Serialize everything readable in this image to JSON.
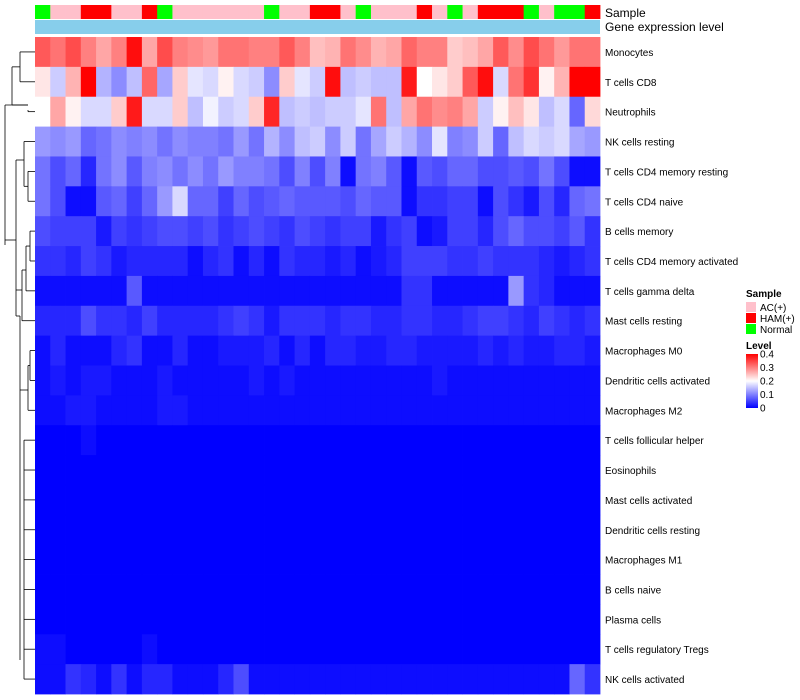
{
  "chart_data": {
    "type": "heatmap",
    "title": "",
    "annotation_tracks": [
      {
        "name": "Sample",
        "label": "Sample"
      },
      {
        "name": "Gene expression level",
        "label": "Gene expression level",
        "color": "#87CEEB"
      }
    ],
    "sample_groups": [
      "Normal",
      "AC(+)",
      "AC(+)",
      "HAM(+)",
      "HAM(+)",
      "AC(+)",
      "AC(+)",
      "HAM(+)",
      "Normal",
      "AC(+)",
      "AC(+)",
      "AC(+)",
      "AC(+)",
      "AC(+)",
      "AC(+)",
      "Normal",
      "AC(+)",
      "AC(+)",
      "HAM(+)",
      "HAM(+)",
      "AC(+)",
      "Normal",
      "AC(+)",
      "AC(+)",
      "AC(+)",
      "HAM(+)",
      "AC(+)",
      "Normal",
      "AC(+)",
      "HAM(+)",
      "HAM(+)",
      "HAM(+)",
      "Normal",
      "AC(+)",
      "Normal",
      "Normal",
      "HAM(+)"
    ],
    "rows": [
      "Monocytes",
      "T cells CD8",
      "Neutrophils",
      "NK cells resting",
      "T cells CD4 memory resting",
      "T cells CD4 naive",
      "B cells memory",
      "T cells CD4 memory activated",
      "T cells gamma delta",
      "Mast cells resting",
      "Macrophages M0",
      "Dendritic cells activated",
      "Macrophages M2",
      "T cells follicular helper",
      "Eosinophils",
      "Mast cells activated",
      "Dendritic cells resting",
      "Macrophages M1",
      "B cells naive",
      "Plasma cells",
      "T cells regulatory  Tregs",
      "NK cells activated"
    ],
    "values": [
      [
        0.33,
        0.31,
        0.34,
        0.3,
        0.27,
        0.3,
        0.39,
        0.27,
        0.34,
        0.3,
        0.29,
        0.28,
        0.31,
        0.31,
        0.3,
        0.3,
        0.33,
        0.3,
        0.25,
        0.26,
        0.31,
        0.29,
        0.26,
        0.27,
        0.32,
        0.3,
        0.3,
        0.24,
        0.25,
        0.27,
        0.33,
        0.29,
        0.34,
        0.31,
        0.28,
        0.31,
        0.31
      ],
      [
        0.22,
        0.16,
        0.26,
        0.4,
        0.14,
        0.11,
        0.15,
        0.32,
        0.13,
        0.24,
        0.18,
        0.17,
        0.21,
        0.17,
        0.16,
        0.11,
        0.24,
        0.18,
        0.16,
        0.39,
        0.15,
        0.16,
        0.15,
        0.15,
        0.38,
        0.2,
        0.22,
        0.24,
        0.33,
        0.39,
        0.17,
        0.31,
        0.36,
        0.21,
        0.26,
        0.4,
        0.4
      ],
      [
        0.2,
        0.27,
        0.21,
        0.17,
        0.17,
        0.24,
        0.38,
        0.17,
        0.17,
        0.24,
        0.15,
        0.19,
        0.16,
        0.17,
        0.24,
        0.37,
        0.15,
        0.16,
        0.15,
        0.16,
        0.16,
        0.18,
        0.31,
        0.15,
        0.27,
        0.31,
        0.29,
        0.3,
        0.27,
        0.16,
        0.21,
        0.25,
        0.22,
        0.15,
        0.17,
        0.08,
        0.23
      ],
      [
        0.12,
        0.11,
        0.12,
        0.08,
        0.09,
        0.11,
        0.1,
        0.11,
        0.09,
        0.11,
        0.1,
        0.1,
        0.09,
        0.12,
        0.09,
        0.14,
        0.11,
        0.15,
        0.16,
        0.11,
        0.16,
        0.09,
        0.13,
        0.16,
        0.14,
        0.11,
        0.18,
        0.1,
        0.11,
        0.16,
        0.08,
        0.15,
        0.17,
        0.16,
        0.17,
        0.13,
        0.12
      ],
      [
        0.09,
        0.06,
        0.08,
        0.03,
        0.09,
        0.11,
        0.07,
        0.1,
        0.11,
        0.09,
        0.11,
        0.09,
        0.12,
        0.1,
        0.1,
        0.09,
        0.06,
        0.1,
        0.06,
        0.1,
        0.01,
        0.09,
        0.1,
        0.07,
        0.01,
        0.07,
        0.06,
        0.08,
        0.08,
        0.06,
        0.06,
        0.07,
        0.06,
        0.09,
        0.06,
        0.01,
        0.01
      ],
      [
        0.09,
        0.06,
        0.01,
        0.01,
        0.07,
        0.08,
        0.05,
        0.08,
        0.12,
        0.17,
        0.08,
        0.08,
        0.05,
        0.08,
        0.06,
        0.07,
        0.08,
        0.07,
        0.07,
        0.07,
        0.06,
        0.08,
        0.07,
        0.07,
        0.01,
        0.04,
        0.04,
        0.05,
        0.05,
        0.01,
        0.06,
        0.04,
        0.02,
        0.06,
        0.03,
        0.08,
        0.09
      ],
      [
        0.06,
        0.05,
        0.05,
        0.05,
        0.02,
        0.05,
        0.04,
        0.05,
        0.06,
        0.06,
        0.05,
        0.06,
        0.04,
        0.05,
        0.06,
        0.05,
        0.04,
        0.06,
        0.05,
        0.04,
        0.05,
        0.05,
        0.02,
        0.04,
        0.05,
        0.01,
        0.02,
        0.05,
        0.05,
        0.03,
        0.06,
        0.08,
        0.06,
        0.06,
        0.05,
        0.07,
        0.04
      ],
      [
        0.04,
        0.04,
        0.03,
        0.05,
        0.04,
        0.02,
        0.03,
        0.03,
        0.03,
        0.03,
        0.01,
        0.03,
        0.04,
        0.01,
        0.03,
        0.01,
        0.04,
        0.03,
        0.03,
        0.02,
        0.03,
        0.01,
        0.02,
        0.03,
        0.05,
        0.05,
        0.05,
        0.04,
        0.04,
        0.05,
        0.04,
        0.04,
        0.04,
        0.03,
        0.02,
        0.03,
        0.04
      ],
      [
        0.01,
        0.01,
        0.01,
        0.01,
        0.01,
        0.01,
        0.07,
        0.01,
        0.01,
        0.01,
        0.01,
        0.01,
        0.01,
        0.01,
        0.01,
        0.01,
        0.01,
        0.01,
        0.01,
        0.01,
        0.01,
        0.01,
        0.01,
        0.01,
        0.04,
        0.04,
        0.01,
        0.01,
        0.01,
        0.01,
        0.01,
        0.12,
        0.04,
        0.03,
        0.01,
        0.01,
        0.01
      ],
      [
        0.03,
        0.03,
        0.03,
        0.06,
        0.04,
        0.04,
        0.03,
        0.05,
        0.03,
        0.03,
        0.03,
        0.03,
        0.04,
        0.05,
        0.04,
        0.02,
        0.04,
        0.04,
        0.04,
        0.03,
        0.04,
        0.04,
        0.03,
        0.03,
        0.04,
        0.04,
        0.03,
        0.03,
        0.04,
        0.05,
        0.05,
        0.04,
        0.03,
        0.05,
        0.04,
        0.03,
        0.04
      ],
      [
        0.01,
        0.03,
        0.01,
        0.01,
        0.01,
        0.03,
        0.04,
        0.01,
        0.01,
        0.03,
        0.01,
        0.01,
        0.02,
        0.02,
        0.02,
        0.03,
        0.01,
        0.03,
        0.01,
        0.03,
        0.03,
        0.02,
        0.02,
        0.03,
        0.03,
        0.02,
        0.02,
        0.02,
        0.02,
        0.03,
        0.02,
        0.03,
        0.02,
        0.02,
        0.03,
        0.03,
        0.02
      ],
      [
        0.01,
        0.02,
        0.01,
        0.02,
        0.02,
        0.01,
        0.01,
        0.01,
        0.02,
        0.01,
        0.01,
        0.01,
        0.01,
        0.01,
        0.02,
        0.01,
        0.02,
        0.01,
        0.01,
        0.01,
        0.01,
        0.01,
        0.01,
        0.01,
        0.01,
        0.01,
        0.02,
        0.01,
        0.01,
        0.01,
        0.01,
        0.01,
        0.01,
        0.01,
        0.01,
        0.01,
        0.01
      ],
      [
        0.01,
        0.01,
        0.02,
        0.02,
        0.01,
        0.01,
        0.01,
        0.01,
        0.02,
        0.02,
        0.01,
        0.01,
        0.01,
        0.01,
        0.01,
        0.01,
        0.01,
        0.01,
        0.01,
        0.01,
        0.01,
        0.01,
        0.01,
        0.01,
        0.01,
        0.01,
        0.01,
        0.01,
        0.01,
        0.01,
        0.01,
        0.01,
        0.01,
        0.01,
        0.01,
        0.01,
        0.01
      ],
      [
        0,
        0,
        0,
        0.01,
        0,
        0,
        0,
        0,
        0,
        0,
        0,
        0,
        0,
        0,
        0,
        0,
        0,
        0,
        0,
        0,
        0,
        0,
        0,
        0,
        0,
        0,
        0,
        0,
        0,
        0,
        0,
        0,
        0,
        0,
        0,
        0,
        0
      ],
      [
        0,
        0,
        0,
        0,
        0,
        0,
        0,
        0,
        0,
        0,
        0,
        0,
        0,
        0,
        0,
        0,
        0,
        0,
        0,
        0,
        0,
        0,
        0,
        0,
        0,
        0,
        0,
        0,
        0,
        0,
        0,
        0,
        0,
        0,
        0,
        0,
        0
      ],
      [
        0,
        0,
        0,
        0,
        0,
        0,
        0,
        0,
        0,
        0,
        0,
        0,
        0,
        0,
        0,
        0,
        0,
        0,
        0,
        0,
        0,
        0,
        0,
        0,
        0,
        0,
        0,
        0,
        0,
        0,
        0,
        0,
        0,
        0,
        0,
        0,
        0
      ],
      [
        0,
        0,
        0,
        0,
        0,
        0,
        0,
        0,
        0,
        0,
        0,
        0,
        0,
        0,
        0,
        0,
        0,
        0,
        0,
        0,
        0,
        0,
        0,
        0,
        0,
        0,
        0,
        0,
        0,
        0,
        0,
        0,
        0,
        0,
        0,
        0,
        0
      ],
      [
        0,
        0,
        0,
        0,
        0,
        0,
        0,
        0,
        0,
        0,
        0,
        0,
        0,
        0,
        0,
        0,
        0,
        0,
        0,
        0,
        0,
        0,
        0,
        0,
        0,
        0,
        0,
        0,
        0,
        0,
        0,
        0,
        0,
        0,
        0,
        0,
        0
      ],
      [
        0,
        0,
        0,
        0,
        0,
        0,
        0,
        0,
        0,
        0,
        0,
        0,
        0,
        0,
        0,
        0,
        0,
        0,
        0,
        0,
        0,
        0,
        0,
        0,
        0,
        0,
        0,
        0,
        0,
        0,
        0,
        0,
        0,
        0,
        0,
        0,
        0
      ],
      [
        0,
        0,
        0,
        0,
        0,
        0,
        0,
        0,
        0,
        0,
        0,
        0,
        0,
        0,
        0,
        0,
        0,
        0,
        0,
        0,
        0,
        0,
        0,
        0,
        0,
        0,
        0,
        0,
        0,
        0,
        0,
        0,
        0,
        0,
        0,
        0,
        0
      ],
      [
        0.01,
        0.01,
        0,
        0,
        0,
        0,
        0,
        0.01,
        0,
        0,
        0,
        0,
        0,
        0,
        0,
        0,
        0,
        0,
        0,
        0,
        0,
        0,
        0,
        0,
        0,
        0,
        0,
        0,
        0,
        0,
        0,
        0,
        0,
        0,
        0,
        0,
        0
      ],
      [
        0.01,
        0.01,
        0.04,
        0.03,
        0.01,
        0.04,
        0.01,
        0.03,
        0.03,
        0.01,
        0.01,
        0.01,
        0.03,
        0.06,
        0.01,
        0.01,
        0.01,
        0.01,
        0.01,
        0.01,
        0.01,
        0.01,
        0.01,
        0.01,
        0.01,
        0.01,
        0.01,
        0.01,
        0.01,
        0.01,
        0.01,
        0.01,
        0.01,
        0.01,
        0.01,
        0.08,
        0.04
      ]
    ],
    "value_range": [
      0,
      0.4
    ],
    "color_scale": {
      "low": "#0000FF",
      "mid": "#FFFFFF",
      "high": "#FF0000",
      "midpoint": 0.2
    },
    "legend": {
      "sample_title": "Sample",
      "sample_entries": [
        {
          "label": "AC(+)",
          "color": "#FFC0CB"
        },
        {
          "label": "HAM(+)",
          "color": "#FF0000"
        },
        {
          "label": "Normal",
          "color": "#00FF00"
        }
      ],
      "level_title": "Level",
      "level_ticks": [
        {
          "label": "0.4",
          "value": 0.4
        },
        {
          "label": "0.3",
          "value": 0.3
        },
        {
          "label": "0.2",
          "value": 0.2
        },
        {
          "label": "0.1",
          "value": 0.1
        },
        {
          "label": "0",
          "value": 0
        }
      ]
    }
  }
}
